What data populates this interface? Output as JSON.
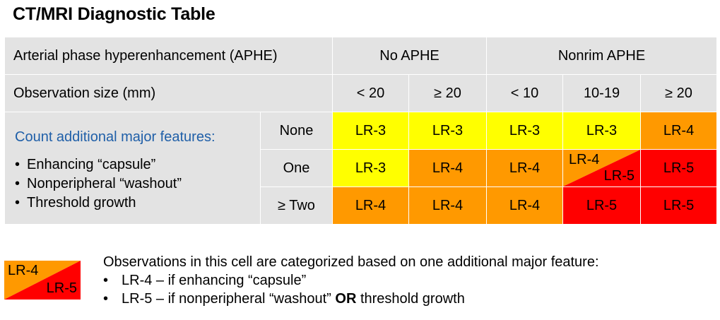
{
  "title": "CT/MRI Diagnostic Table",
  "header": {
    "aphe_label": "Arterial phase hyperenhancement (APHE)",
    "no_aphe": "No APHE",
    "nonrim_aphe": "Nonrim APHE",
    "size_label": "Observation size (mm)",
    "sizes": [
      "< 20",
      "≥ 20",
      "< 10",
      "10-19",
      "≥ 20"
    ]
  },
  "features": {
    "title": "Count additional major features:",
    "items": [
      "Enhancing “capsule”",
      "Nonperipheral “washout”",
      "Threshold growth"
    ],
    "bullet": "•"
  },
  "rows": [
    {
      "label": "None",
      "cells": [
        "LR-3",
        "LR-3",
        "LR-3",
        "LR-3",
        "LR-4"
      ]
    },
    {
      "label": "One",
      "cells": [
        "LR-3",
        "LR-4",
        "LR-4",
        "",
        "LR-5"
      ],
      "split": {
        "top": "LR-4",
        "bottom": "LR-5"
      }
    },
    {
      "label": "≥ Two",
      "cells": [
        "LR-4",
        "LR-4",
        "LR-4",
        "LR-5",
        "LR-5"
      ]
    }
  ],
  "colors": {
    "lr3": "#ffff00",
    "lr4": "#ff9900",
    "lr5": "#ff0000",
    "header": "#e3e3e3",
    "feature_title": "#1f5fa8"
  },
  "legend": {
    "swatch_top": "LR-4",
    "swatch_bottom": "LR-5",
    "intro": "Observations in this cell are categorized based on one additional major feature:",
    "bullet": "•",
    "item1": "LR-4 – if enhancing “capsule”",
    "item2_pre": "LR-5 – if nonperipheral “washout”",
    "item2_bold": "OR",
    "item2_post": "threshold growth"
  }
}
